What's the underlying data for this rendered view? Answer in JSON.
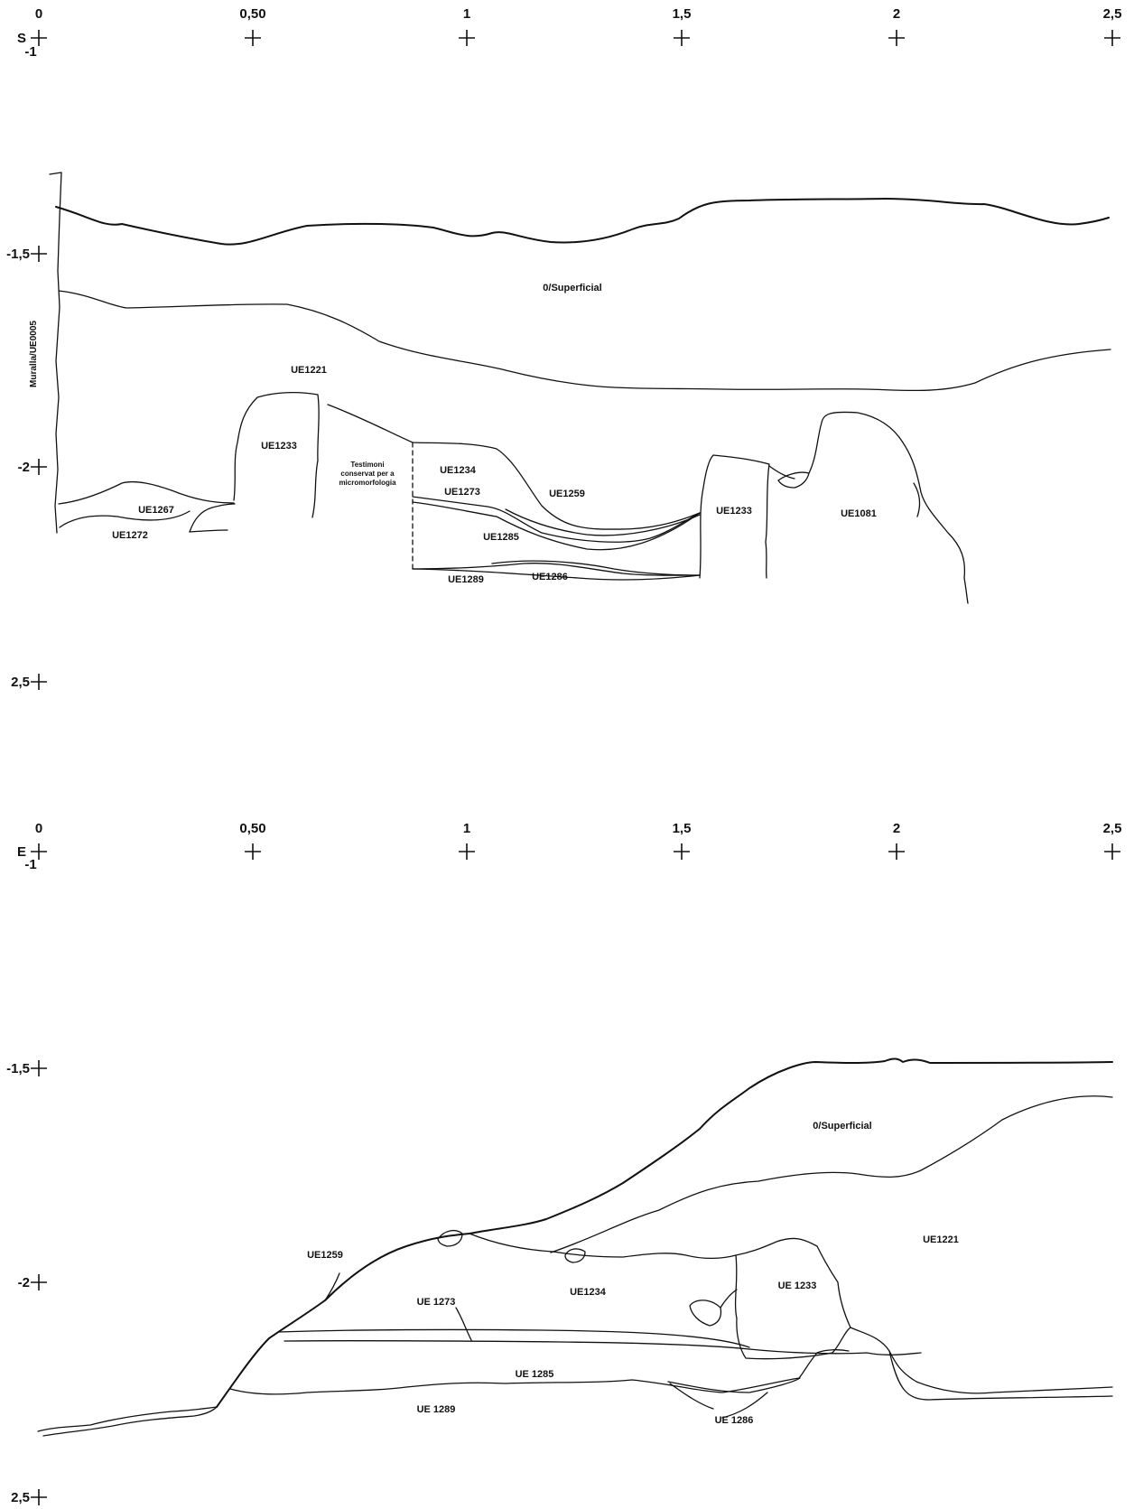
{
  "sections": [
    {
      "id": "S",
      "orientation_letter": "S",
      "x_ticks": [
        "0",
        "0,50",
        "1",
        "1,5",
        "2",
        "2,5"
      ],
      "y_ticks": [
        "-1",
        "-1,5",
        "-2",
        "2,5"
      ],
      "wall_label": "Muralla/UE0005",
      "units": [
        "0/Superficial",
        "UE1221",
        "UE1233",
        "UE1267",
        "UE1272",
        "UE1234",
        "UE1273",
        "UE1259",
        "UE1285",
        "UE1289",
        "UE1286",
        "UE1233",
        "UE1081"
      ],
      "note": [
        "Testimoni",
        "conservat per a",
        "micromorfologia"
      ]
    },
    {
      "id": "E",
      "orientation_letter": "E",
      "x_ticks": [
        "0",
        "0,50",
        "1",
        "1,5",
        "2",
        "2,5"
      ],
      "y_ticks": [
        "-1",
        "-1,5",
        "-2",
        "2,5"
      ],
      "units": [
        "0/Superficial",
        "UE1221",
        "UE1259",
        "UE1234",
        "UE 1233",
        "UE 1273",
        "UE 1285",
        "UE 1289",
        "UE 1286"
      ]
    }
  ]
}
